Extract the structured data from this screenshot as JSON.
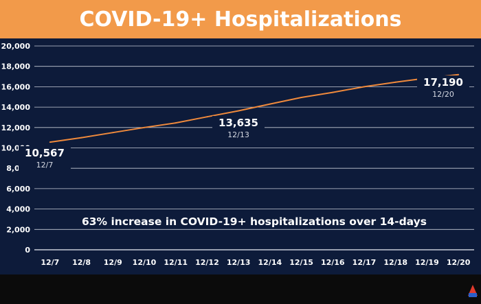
{
  "title": "COVID-19+ Hospitalizations",
  "colors": {
    "background": "#0d1b3a",
    "title_bar": "#f29a4a",
    "line": "#f08a3c",
    "grid": "#c8cdd8",
    "text": "#ffffff"
  },
  "logo_icon": "all-arizona-logo",
  "chart_data": {
    "type": "line",
    "title": "COVID-19+ Hospitalizations",
    "xlabel": "",
    "ylabel": "",
    "categories": [
      "12/7",
      "12/8",
      "12/9",
      "12/10",
      "12/11",
      "12/12",
      "12/13",
      "12/14",
      "12/15",
      "12/16",
      "12/17",
      "12/18",
      "12/19",
      "12/20"
    ],
    "y_ticks": [
      "0",
      "2,000",
      "4,000",
      "6,000",
      "8,000",
      "10,000",
      "12,000",
      "14,000",
      "16,000",
      "18,000",
      "20,000"
    ],
    "ylim": [
      0,
      20000
    ],
    "grid": true,
    "series": [
      {
        "values": [
          10567,
          11000,
          11500,
          12000,
          12450,
          13050,
          13635,
          14300,
          14950,
          15450,
          16000,
          16450,
          16850,
          17190
        ]
      }
    ],
    "data_labels": [
      {
        "value": "10,567",
        "date": "12/7"
      },
      {
        "value": "13,635",
        "date": "12/13"
      },
      {
        "value": "17,190",
        "date": "12/20"
      }
    ],
    "annotation": "63% increase in COVID-19+ hospitalizations over 14-days"
  }
}
